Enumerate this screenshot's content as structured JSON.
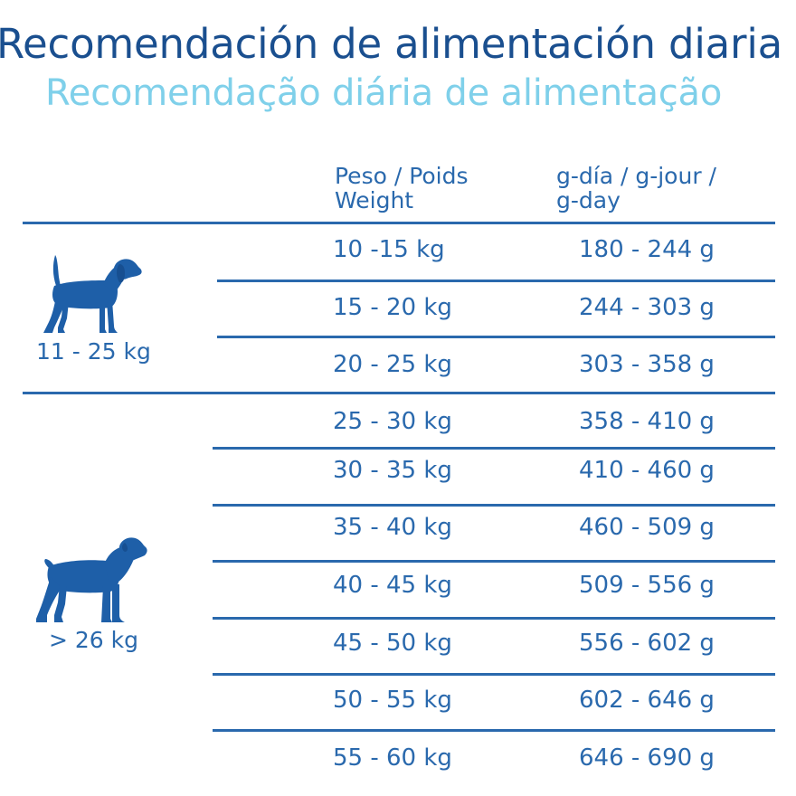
{
  "title": {
    "es": "Recomendación de alimentación diaria",
    "pt": "Recomendação diária de alimentação"
  },
  "header": {
    "weight_line1": "Peso / Poids",
    "weight_line2": "Weight",
    "grams_line1": "g-día /  g-jour /",
    "grams_line2": "g-day"
  },
  "groups": [
    {
      "label": "11 - 25 kg",
      "icon": "beagle-dog-icon",
      "rows": [
        {
          "weight": "10 -15 kg",
          "grams": "180 - 244 g"
        },
        {
          "weight": "15 - 20 kg",
          "grams": "244 - 303 g"
        },
        {
          "weight": "20 - 25 kg",
          "grams": "303 - 358 g"
        }
      ]
    },
    {
      "label": "> 26 kg",
      "icon": "rottweiler-dog-icon",
      "rows": [
        {
          "weight": "25 - 30 kg",
          "grams": "358 - 410 g"
        },
        {
          "weight": "30 - 35 kg",
          "grams": "410 - 460 g"
        },
        {
          "weight": "35 - 40 kg",
          "grams": "460 - 509 g"
        },
        {
          "weight": "40 - 45 kg",
          "grams": "509 - 556 g"
        },
        {
          "weight": "45 - 50 kg",
          "grams": "556 - 602 g"
        },
        {
          "weight": "50 - 55 kg",
          "grams": "602 - 646 g"
        },
        {
          "weight": "55 - 60 kg",
          "grams": "646 - 690 g"
        }
      ]
    }
  ],
  "colors": {
    "title_primary": "#1a4f8f",
    "title_secondary": "#7fd0ea",
    "table_blue": "#2a69ad"
  }
}
